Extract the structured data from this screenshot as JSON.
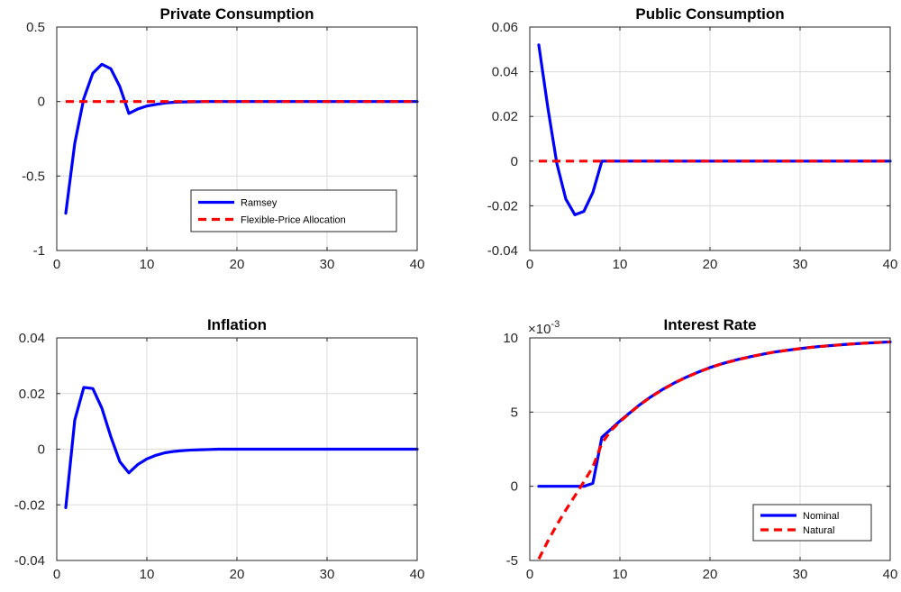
{
  "chart_data": [
    {
      "type": "line",
      "title": "Private Consumption",
      "xlim": [
        0,
        40
      ],
      "ylim": [
        -1,
        0.5
      ],
      "xticks": [
        0,
        10,
        20,
        30,
        40
      ],
      "yticks": [
        -1,
        -0.5,
        0,
        0.5
      ],
      "xtick_labels": [
        "0",
        "10",
        "20",
        "30",
        "40"
      ],
      "ytick_labels": [
        "-1",
        "-0.5",
        "0",
        "0.5"
      ],
      "grid": true,
      "legend": "lower-right",
      "series": [
        {
          "name": "Ramsey",
          "color": "#0000ff",
          "style": "solid",
          "x": [
            1,
            2,
            3,
            4,
            5,
            6,
            7,
            8,
            9,
            10,
            11,
            12,
            13,
            14,
            15,
            16,
            17,
            18,
            19,
            20,
            21,
            22,
            23,
            24,
            25,
            26,
            27,
            28,
            29,
            30,
            31,
            32,
            33,
            34,
            35,
            36,
            37,
            38,
            39,
            40
          ],
          "y": [
            -0.75,
            -0.28,
            0.02,
            0.19,
            0.25,
            0.22,
            0.1,
            -0.08,
            -0.05,
            -0.03,
            -0.02,
            -0.01,
            -0.005,
            -0.003,
            -0.002,
            -0.001,
            0,
            0,
            0,
            0,
            0,
            0,
            0,
            0,
            0,
            0,
            0,
            0,
            0,
            0,
            0,
            0,
            0,
            0,
            0,
            0,
            0,
            0,
            0,
            0
          ]
        },
        {
          "name": "Flexible-Price Allocation",
          "color": "#ff0000",
          "style": "dashed",
          "x": [
            1,
            40
          ],
          "y": [
            0,
            0
          ]
        }
      ]
    },
    {
      "type": "line",
      "title": "Public Consumption",
      "xlim": [
        0,
        40
      ],
      "ylim": [
        -0.04,
        0.06
      ],
      "xticks": [
        0,
        10,
        20,
        30,
        40
      ],
      "yticks": [
        -0.04,
        -0.02,
        0,
        0.02,
        0.04,
        0.06
      ],
      "xtick_labels": [
        "0",
        "10",
        "20",
        "30",
        "40"
      ],
      "ytick_labels": [
        "-0.04",
        "-0.02",
        "0",
        "0.02",
        "0.04",
        "0.06"
      ],
      "grid": true,
      "series": [
        {
          "color": "#0000ff",
          "style": "solid",
          "x": [
            1,
            2,
            3,
            4,
            5,
            6,
            7,
            8,
            9,
            10,
            20,
            30,
            40
          ],
          "y": [
            0.052,
            0.024,
            -0.001,
            -0.017,
            -0.024,
            -0.0225,
            -0.014,
            0,
            0,
            0,
            0,
            0,
            0
          ]
        },
        {
          "color": "#ff0000",
          "style": "dashed",
          "x": [
            1,
            40
          ],
          "y": [
            0,
            0
          ]
        }
      ]
    },
    {
      "type": "line",
      "title": "Inflation",
      "xlim": [
        0,
        40
      ],
      "ylim": [
        -0.04,
        0.04
      ],
      "xticks": [
        0,
        10,
        20,
        30,
        40
      ],
      "yticks": [
        -0.04,
        -0.02,
        0,
        0.02,
        0.04
      ],
      "xtick_labels": [
        "0",
        "10",
        "20",
        "30",
        "40"
      ],
      "ytick_labels": [
        "-0.04",
        "-0.02",
        "0",
        "0.02",
        "0.04"
      ],
      "grid": true,
      "series": [
        {
          "color": "#0000ff",
          "style": "solid",
          "x": [
            1,
            2,
            3,
            4,
            5,
            6,
            7,
            8,
            9,
            10,
            11,
            12,
            13,
            14,
            15,
            16,
            17,
            18,
            19,
            20,
            25,
            30,
            35,
            40
          ],
          "y": [
            -0.021,
            0.0105,
            0.0222,
            0.0218,
            0.0148,
            0.0045,
            -0.0045,
            -0.0085,
            -0.0055,
            -0.0035,
            -0.0022,
            -0.0013,
            -0.0008,
            -0.0005,
            -0.0003,
            -0.0002,
            -0.0001,
            0,
            0,
            0,
            0,
            0,
            0,
            0
          ]
        }
      ]
    },
    {
      "type": "line",
      "title": "Interest Rate",
      "exponent_label": "×10",
      "exponent_power": "-3",
      "xlim": [
        0,
        40
      ],
      "ylim": [
        -5,
        10
      ],
      "xticks": [
        0,
        10,
        20,
        30,
        40
      ],
      "yticks": [
        -5,
        0,
        5,
        10
      ],
      "xtick_labels": [
        "0",
        "10",
        "20",
        "30",
        "40"
      ],
      "ytick_labels": [
        "-5",
        "0",
        "5",
        "10"
      ],
      "grid": true,
      "legend": "lower-right",
      "series": [
        {
          "name": "Nominal",
          "color": "#0000ff",
          "style": "solid",
          "x": [
            1,
            2,
            3,
            4,
            5,
            6,
            7,
            8,
            9,
            10,
            11,
            12,
            13,
            14,
            15,
            16,
            17,
            18,
            19,
            20,
            21,
            22,
            23,
            24,
            25,
            26,
            27,
            28,
            29,
            30,
            31,
            32,
            33,
            34,
            35,
            36,
            37,
            38,
            39,
            40
          ],
          "y": [
            0,
            0,
            0,
            0,
            0,
            0,
            0.2,
            3.3,
            3.85,
            4.4,
            4.9,
            5.4,
            5.85,
            6.25,
            6.62,
            6.95,
            7.25,
            7.52,
            7.77,
            8.0,
            8.2,
            8.37,
            8.53,
            8.67,
            8.8,
            8.92,
            9.03,
            9.12,
            9.2,
            9.28,
            9.35,
            9.41,
            9.46,
            9.51,
            9.56,
            9.6,
            9.64,
            9.67,
            9.7,
            9.73
          ]
        },
        {
          "name": "Natural",
          "color": "#ff0000",
          "style": "dashed",
          "x": [
            1,
            2,
            3,
            4,
            5,
            6,
            7,
            8,
            9,
            10,
            11,
            12,
            13,
            14,
            15,
            16,
            17,
            18,
            19,
            20,
            21,
            22,
            23,
            24,
            25,
            26,
            27,
            28,
            29,
            30,
            31,
            32,
            33,
            34,
            35,
            36,
            37,
            38,
            39,
            40
          ],
          "y": [
            -4.9,
            -3.7,
            -2.6,
            -1.6,
            -0.65,
            0.3,
            1.3,
            2.9,
            3.75,
            4.35,
            4.88,
            5.38,
            5.83,
            6.23,
            6.6,
            6.94,
            7.24,
            7.51,
            7.76,
            7.99,
            8.19,
            8.36,
            8.52,
            8.66,
            8.8,
            8.92,
            9.03,
            9.12,
            9.2,
            9.28,
            9.35,
            9.41,
            9.46,
            9.51,
            9.56,
            9.6,
            9.64,
            9.67,
            9.7,
            9.73
          ]
        }
      ]
    }
  ]
}
